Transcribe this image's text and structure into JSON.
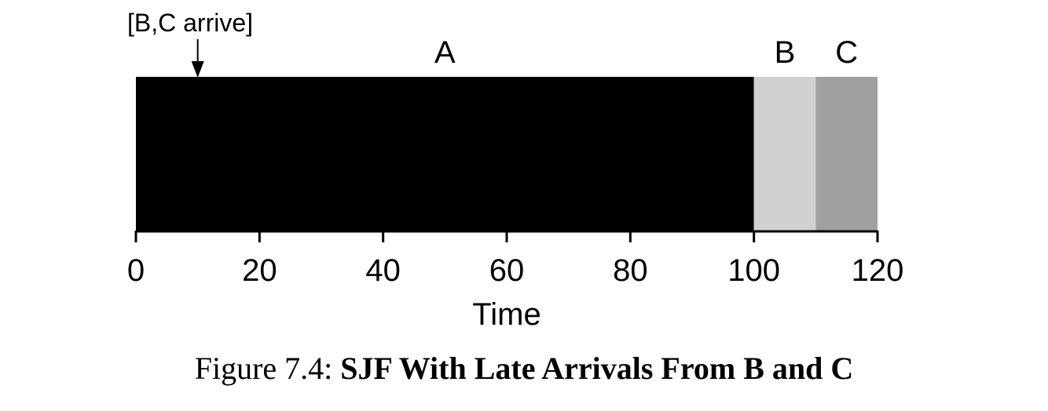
{
  "chart_data": {
    "type": "bar",
    "orientation": "horizontal",
    "subtype": "timeline",
    "xlabel": "Time",
    "xlim": [
      0,
      120
    ],
    "xticks": [
      0,
      20,
      40,
      60,
      80,
      100,
      120
    ],
    "grid": false,
    "segments": [
      {
        "name": "A",
        "start": 0,
        "end": 100,
        "color": "#000000"
      },
      {
        "name": "B",
        "start": 100,
        "end": 110,
        "color": "#d0d0d0"
      },
      {
        "name": "C",
        "start": 110,
        "end": 120,
        "color": "#a0a0a0"
      }
    ],
    "annotations": [
      {
        "text": "[B,C arrive]",
        "x": 10
      }
    ]
  },
  "caption": {
    "prefix": "Figure 7.4:",
    "title": "SJF With Late Arrivals From B and C"
  }
}
